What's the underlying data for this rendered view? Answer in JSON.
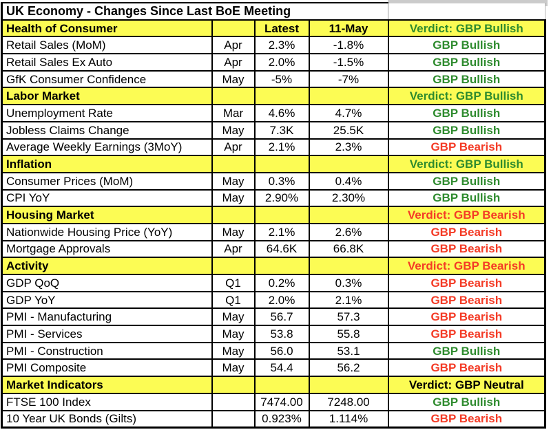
{
  "title": "UK Economy - Changes Since Last BoE Meeting",
  "columns": {
    "latest": "Latest",
    "previous": "11-May"
  },
  "colors": {
    "section_bg": "#fcfc54",
    "bullish": "#2e8b2e",
    "bearish": "#f43b26",
    "neutral": "#000000",
    "grid": "#000000",
    "spreadsheet_gray": "#cbcbcb"
  },
  "sections": [
    {
      "name": "Health of Consumer",
      "verdict": "Verdict: GBP Bullish",
      "sentiment": "bullish",
      "rows": [
        {
          "label": "Retail Sales (MoM)",
          "month": "Apr",
          "latest": "2.3%",
          "previous": "-1.8%",
          "verdict": "GBP Bullish",
          "sentiment": "bullish"
        },
        {
          "label": "Retail Sales Ex Auto",
          "month": "Apr",
          "latest": "2.0%",
          "previous": "-1.5%",
          "verdict": "GBP Bullish",
          "sentiment": "bullish"
        },
        {
          "label": "GfK Consumer Confidence",
          "month": "May",
          "latest": "-5%",
          "previous": "-7%",
          "verdict": "GBP Bullish",
          "sentiment": "bullish"
        }
      ]
    },
    {
      "name": "Labor Market",
      "verdict": "Verdict: GBP Bullish",
      "sentiment": "bullish",
      "rows": [
        {
          "label": "Unemployment Rate",
          "month": "Mar",
          "latest": "4.6%",
          "previous": "4.7%",
          "verdict": "GBP Bullish",
          "sentiment": "bullish"
        },
        {
          "label": "Jobless Claims Change",
          "month": "May",
          "latest": "7.3K",
          "previous": "25.5K",
          "verdict": "GBP Bullish",
          "sentiment": "bullish"
        },
        {
          "label": "Average Weekly Earnings (3MoY)",
          "month": "Apr",
          "latest": "2.1%",
          "previous": "2.3%",
          "verdict": "GBP Bearish",
          "sentiment": "bearish"
        }
      ]
    },
    {
      "name": "Inflation",
      "verdict": "Verdict: GBP Bullish",
      "sentiment": "bullish",
      "rows": [
        {
          "label": "Consumer Prices (MoM)",
          "month": "May",
          "latest": "0.3%",
          "previous": "0.4%",
          "verdict": "GBP Bullish",
          "sentiment": "bullish"
        },
        {
          "label": "CPI YoY",
          "month": "May",
          "latest": "2.90%",
          "previous": "2.30%",
          "verdict": "GBP Bullish",
          "sentiment": "bullish"
        }
      ]
    },
    {
      "name": "Housing Market",
      "verdict": "Verdict: GBP Bearish",
      "sentiment": "bearish",
      "rows": [
        {
          "label": "Nationwide Housing Price (YoY)",
          "month": "May",
          "latest": "2.1%",
          "previous": "2.6%",
          "verdict": "GBP Bearish",
          "sentiment": "bearish"
        },
        {
          "label": "Mortgage Approvals",
          "month": "Apr",
          "latest": "64.6K",
          "previous": "66.8K",
          "verdict": "GBP Bearish",
          "sentiment": "bearish"
        }
      ]
    },
    {
      "name": "Activity",
      "verdict": "Verdict: GBP Bearish",
      "sentiment": "bearish",
      "rows": [
        {
          "label": "GDP QoQ",
          "month": "Q1",
          "latest": "0.2%",
          "previous": "0.3%",
          "verdict": "GBP Bearish",
          "sentiment": "bearish"
        },
        {
          "label": "GDP YoY",
          "month": "Q1",
          "latest": "2.0%",
          "previous": "2.1%",
          "verdict": "GBP Bearish",
          "sentiment": "bearish"
        },
        {
          "label": "PMI - Manufacturing",
          "month": "May",
          "latest": "56.7",
          "previous": "57.3",
          "verdict": "GBP Bearish",
          "sentiment": "bearish"
        },
        {
          "label": "PMI - Services",
          "month": "May",
          "latest": "53.8",
          "previous": "55.8",
          "verdict": "GBP Bearish",
          "sentiment": "bearish"
        },
        {
          "label": "PMI - Construction",
          "month": "May",
          "latest": "56.0",
          "previous": "53.1",
          "verdict": "GBP Bullish",
          "sentiment": "bullish"
        },
        {
          "label": "PMI Composite",
          "month": "May",
          "latest": "54.4",
          "previous": "56.2",
          "verdict": "GBP Bearish",
          "sentiment": "bearish"
        }
      ]
    },
    {
      "name": "Market Indicators",
      "verdict": "Verdict: GBP Neutral",
      "sentiment": "neutral",
      "rows": [
        {
          "label": "FTSE 100 Index",
          "month": "",
          "latest": "7474.00",
          "previous": "7248.00",
          "verdict": "GBP Bullish",
          "sentiment": "bullish"
        },
        {
          "label": "10 Year UK Bonds (Gilts)",
          "month": "",
          "latest": "0.923%",
          "previous": "1.114%",
          "verdict": "GBP Bearish",
          "sentiment": "bearish"
        }
      ]
    }
  ]
}
